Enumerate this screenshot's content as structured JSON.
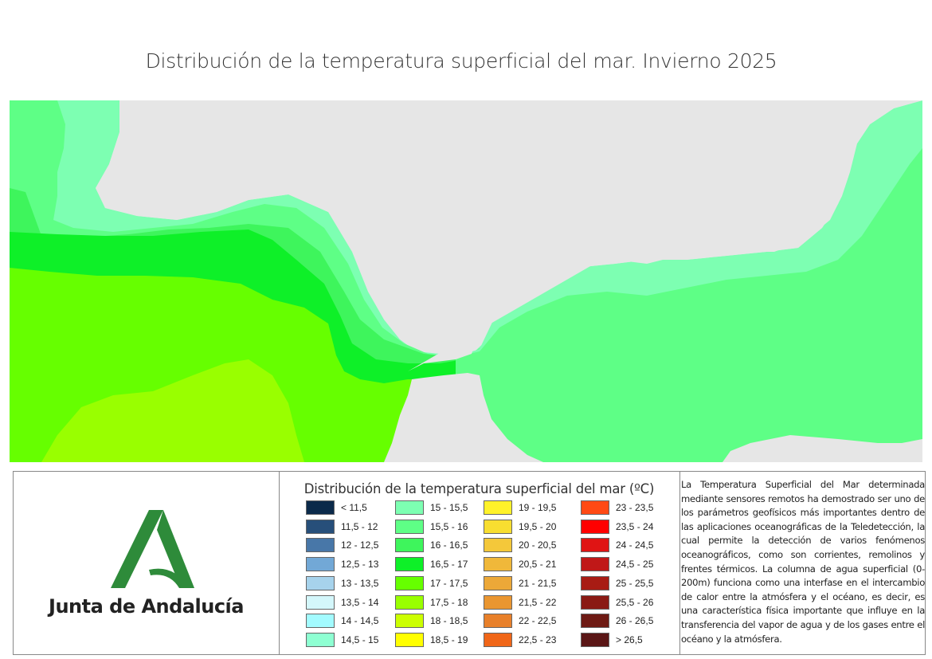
{
  "title": "Distribución de la temperatura superficial del mar. Invierno 2025",
  "map": {
    "land_color": "#e6e6e6",
    "water_colors": {
      "c15": "#7dffb2",
      "c15_5": "#5eff86",
      "c16": "#3ef55c",
      "c16_5": "#0ef028",
      "c17": "#66ff00",
      "c17_5": "#99ff00"
    }
  },
  "logo": {
    "name": "Junta de Andalucía",
    "green": "#2e8b3a"
  },
  "legend": {
    "title": "Distribución de la temperatura superficial del mar (ºC)",
    "columns": [
      [
        {
          "label": "< 11,5",
          "color": "#0b2a4a"
        },
        {
          "label": "11,5 - 12",
          "color": "#274f7a"
        },
        {
          "label": "12 - 12,5",
          "color": "#4877a8"
        },
        {
          "label": "12,5 - 13",
          "color": "#72a8d6"
        },
        {
          "label": "13 - 13,5",
          "color": "#a7d3ec"
        },
        {
          "label": "13,5 - 14",
          "color": "#d4f7fb"
        },
        {
          "label": "14 - 14,5",
          "color": "#a3fbff"
        },
        {
          "label": "14,5 - 15",
          "color": "#8effd2"
        }
      ],
      [
        {
          "label": "15 - 15,5",
          "color": "#7dffb2"
        },
        {
          "label": "15,5 - 16",
          "color": "#5eff86"
        },
        {
          "label": "16 - 16,5",
          "color": "#3ef55c"
        },
        {
          "label": "16,5 - 17",
          "color": "#0ef028"
        },
        {
          "label": "17 - 17,5",
          "color": "#66ff00"
        },
        {
          "label": "17,5 - 18",
          "color": "#99ff00"
        },
        {
          "label": "18 - 18,5",
          "color": "#ccff00"
        },
        {
          "label": "18,5 - 19",
          "color": "#ffff00"
        }
      ],
      [
        {
          "label": "19 - 19,5",
          "color": "#fff22a"
        },
        {
          "label": "19,5 - 20",
          "color": "#f8de30"
        },
        {
          "label": "20 - 20,5",
          "color": "#f4c83a"
        },
        {
          "label": "20,5 - 21",
          "color": "#f0b83a"
        },
        {
          "label": "21 - 21,5",
          "color": "#eca838"
        },
        {
          "label": "21,5 - 22",
          "color": "#ea9630"
        },
        {
          "label": "22 - 22,5",
          "color": "#e8802a"
        },
        {
          "label": "22,5 - 23",
          "color": "#f06618"
        }
      ],
      [
        {
          "label": "23 - 23,5",
          "color": "#ff4a14"
        },
        {
          "label": "23,5 - 24",
          "color": "#ff0000"
        },
        {
          "label": "24 - 24,5",
          "color": "#e01414"
        },
        {
          "label": "24,5 - 25",
          "color": "#c01818"
        },
        {
          "label": "25 - 25,5",
          "color": "#a81c14"
        },
        {
          "label": "25,5 - 26",
          "color": "#8a1a14"
        },
        {
          "label": "26 - 26,5",
          "color": "#6e1a14"
        },
        {
          "label": "> 26,5",
          "color": "#5a1616"
        }
      ]
    ]
  },
  "description": "La Temperatura Superficial del Mar determinada mediante sensores remotos ha demostrado ser uno de los parámetros geofísicos más importantes dentro de las aplicaciones oceanográficas de la Teledetección, la cual permite la detección de varios fenómenos oceanográficos, como son corrientes, remolinos y frentes térmicos. La columna de agua superficial (0-200m) funciona como una interfase en el intercambio de calor entre la atmósfera y el océano, es decir, es una característica física importante que influye en la transferencia del vapor de agua y de los gases entre el océano y la atmósfera."
}
